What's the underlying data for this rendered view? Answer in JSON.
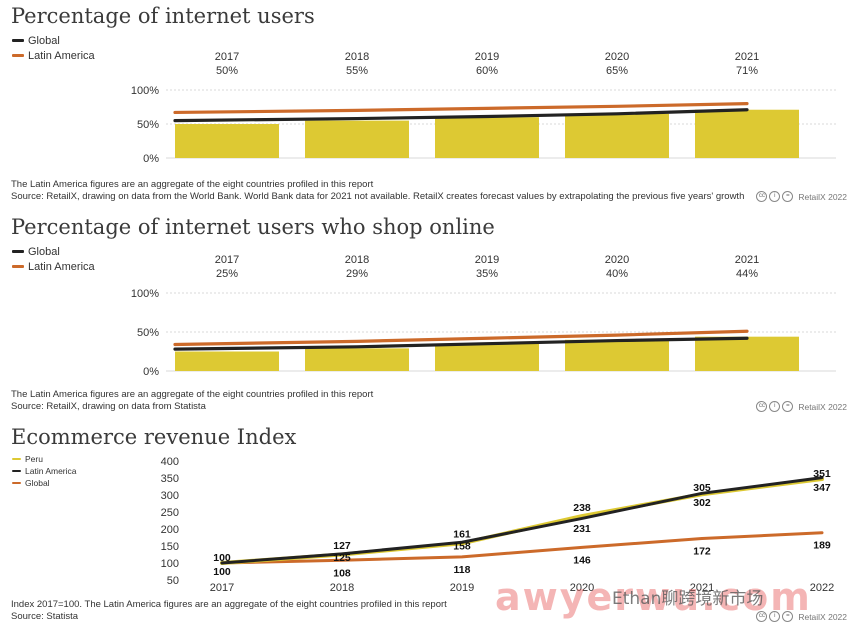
{
  "colors": {
    "bar": "#ddc933",
    "global": "#222222",
    "latam": "#cc6a2a",
    "peru": "#ddc933"
  },
  "chart_data": [
    {
      "type": "bar",
      "title": "Percentage of internet users",
      "categories": [
        "2017",
        "2018",
        "2019",
        "2020",
        "2021"
      ],
      "bar_labels": [
        "50%",
        "55%",
        "60%",
        "65%",
        "71%"
      ],
      "values": [
        50,
        55,
        60,
        65,
        71
      ],
      "series": [
        {
          "name": "Global",
          "values": [
            55,
            58,
            61,
            65,
            71
          ]
        },
        {
          "name": "Latin America",
          "values": [
            67,
            70,
            73,
            76,
            80
          ]
        }
      ],
      "yticks": [
        "0%",
        "50%",
        "100%"
      ],
      "ylim": [
        0,
        100
      ],
      "note": "The Latin America figures are an aggregate of the eight countries profiled in this report",
      "source": "Source: RetailX, drawing on data from the World Bank. World Bank data for 2021 not available. RetailX creates forecast values by extrapolating the previous five years' growth",
      "credit": "RetailX 2022",
      "grid": true,
      "legend_position": "top-left"
    },
    {
      "type": "bar",
      "title": "Percentage of internet users who shop online",
      "categories": [
        "2017",
        "2018",
        "2019",
        "2020",
        "2021"
      ],
      "bar_labels": [
        "25%",
        "29%",
        "35%",
        "40%",
        "44%"
      ],
      "values": [
        25,
        29,
        35,
        40,
        44
      ],
      "series": [
        {
          "name": "Global",
          "values": [
            28,
            31,
            35,
            39,
            42
          ]
        },
        {
          "name": "Latin America",
          "values": [
            34,
            38,
            42,
            46,
            51
          ]
        }
      ],
      "yticks": [
        "0%",
        "50%",
        "100%"
      ],
      "ylim": [
        0,
        100
      ],
      "note": "The Latin America figures are an aggregate of the eight countries profiled in this report",
      "source": "Source: RetailX, drawing on data from Statista",
      "credit": "RetailX 2022",
      "grid": true,
      "legend_position": "top-left"
    },
    {
      "type": "line",
      "title": "Ecommerce revenue Index",
      "x": [
        "2017",
        "2018",
        "2019",
        "2020",
        "2021",
        "2022"
      ],
      "series": [
        {
          "name": "Peru",
          "values": [
            100,
            125,
            158,
            238,
            302,
            347
          ]
        },
        {
          "name": "Latin America",
          "values": [
            100,
            127,
            161,
            231,
            305,
            351
          ]
        },
        {
          "name": "Global",
          "values": [
            100,
            108,
            118,
            146,
            172,
            189
          ]
        }
      ],
      "xticks": [
        "2017",
        "2018",
        "2019",
        "2020",
        "2021",
        "2022"
      ],
      "yticks": [
        "50",
        "100",
        "150",
        "200",
        "250",
        "300",
        "350",
        "400"
      ],
      "ylim": [
        50,
        400
      ],
      "note": "Index 2017=100. The Latin America figures are an aggregate of the eight countries profiled in this report",
      "source": "Source: Statista",
      "credit": "RetailX 2022",
      "grid": false,
      "legend_position": "top-left"
    }
  ],
  "watermark": {
    "main": "awyerwu.com",
    "sub": "Ethan聊跨境新市场"
  }
}
